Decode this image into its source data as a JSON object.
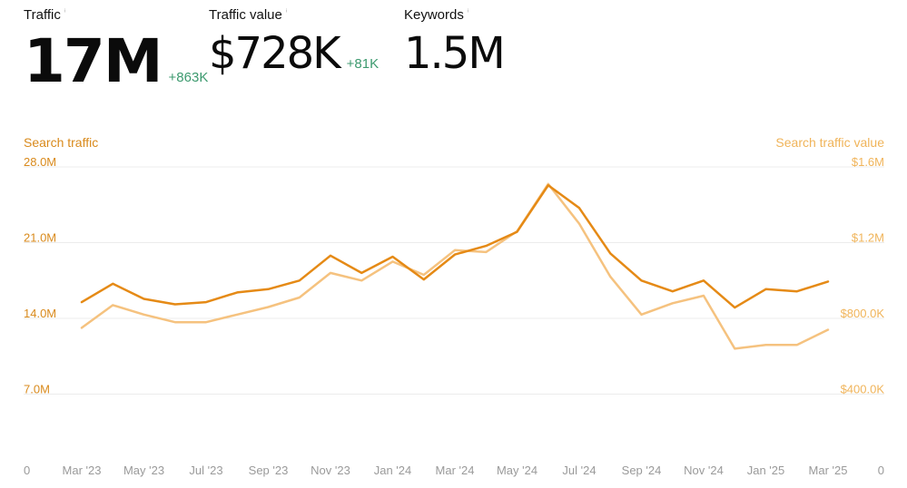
{
  "metrics": {
    "traffic": {
      "label": "Traffic",
      "info_icon": "info-icon",
      "value": "17M",
      "delta": "+863K"
    },
    "traffic_value": {
      "label": "Traffic value",
      "info_icon": "info-icon",
      "value": "$728K",
      "delta": "+81K"
    },
    "keywords": {
      "label": "Keywords",
      "info_icon": "info-icon",
      "value": "1.5M",
      "delta": ""
    }
  },
  "colors": {
    "traffic_line": "#e58a16",
    "value_line": "#f5c27f",
    "left_axis": "#d98a1c",
    "right_axis": "#f0b45a",
    "x_axis": "#9a9a9a",
    "grid": "#ececec",
    "delta": "#3d9a6f"
  },
  "chart_data": {
    "type": "line",
    "left_axis_label": "Search traffic",
    "right_axis_label": "Search traffic value",
    "x": [
      "Mar '23",
      "Apr '23",
      "May '23",
      "Jun '23",
      "Jul '23",
      "Aug '23",
      "Sep '23",
      "Oct '23",
      "Nov '23",
      "Dec '23",
      "Jan '24",
      "Feb '24",
      "Mar '24",
      "Apr '24",
      "May '24",
      "Jun '24",
      "Jul '24",
      "Aug '24",
      "Sep '24",
      "Oct '24",
      "Nov '24",
      "Dec '24",
      "Jan '25",
      "Feb '25",
      "Mar '25"
    ],
    "x_tick_labels": [
      "Mar '23",
      "May '23",
      "Jul '23",
      "Sep '23",
      "Nov '23",
      "Jan '24",
      "Mar '24",
      "May '24",
      "Jul '24",
      "Sep '24",
      "Nov '24",
      "Jan '25",
      "Mar '25"
    ],
    "left_ticks": [
      "0",
      "7.0M",
      "14.0M",
      "21.0M",
      "28.0M"
    ],
    "right_ticks": [
      "0",
      "$400.0K",
      "$800.0K",
      "$1.2M",
      "$1.6M"
    ],
    "ylim_left": [
      0,
      28000000
    ],
    "ylim_right": [
      0,
      1600000
    ],
    "series": [
      {
        "axis": "left",
        "values": [
          15500000,
          17200000,
          15800000,
          15300000,
          15500000,
          16400000,
          16700000,
          17500000,
          19800000,
          18200000,
          19700000,
          17600000,
          19900000,
          20700000,
          22000000,
          26300000,
          24200000,
          20000000,
          17500000,
          16500000,
          17500000,
          15000000,
          16700000,
          16500000,
          17400000
        ]
      },
      {
        "axis": "right",
        "values": [
          750000,
          870000,
          820000,
          780000,
          780000,
          820000,
          860000,
          910000,
          1040000,
          1000000,
          1100000,
          1030000,
          1160000,
          1150000,
          1260000,
          1510000,
          1300000,
          1020000,
          820000,
          880000,
          920000,
          640000,
          660000,
          660000,
          740000
        ]
      }
    ],
    "grid": true
  }
}
